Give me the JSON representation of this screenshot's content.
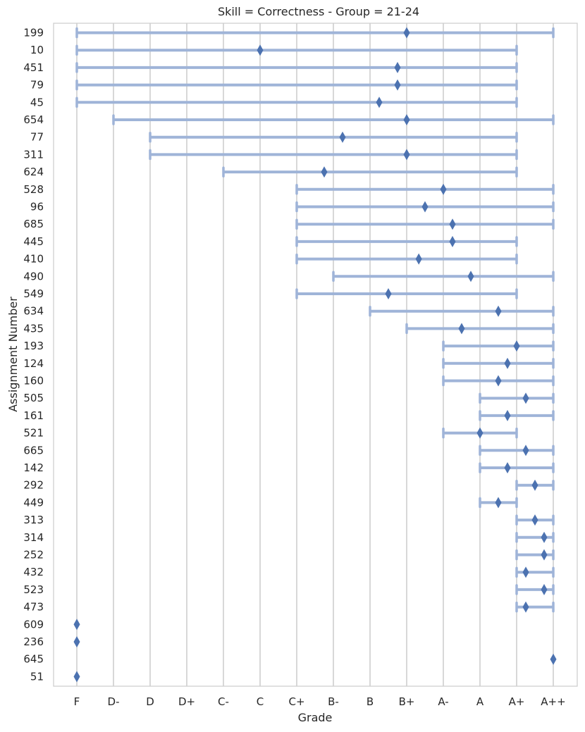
{
  "chart_data": {
    "type": "range-dot",
    "title": "Skill = Correctness - Group = 21-24",
    "xlabel": "Grade",
    "ylabel": "Assignment Number",
    "x_categories": [
      "F",
      "D-",
      "D",
      "D+",
      "C-",
      "C",
      "C+",
      "B-",
      "B",
      "B+",
      "A-",
      "A",
      "A+",
      "A++"
    ],
    "grid": "vertical",
    "colors": {
      "range": "#9fb4d8",
      "marker": "#4c72b0",
      "grid": "#cccccc",
      "frame": "#cccccc"
    },
    "rows": [
      {
        "label": "199",
        "min": 0,
        "max": 13,
        "mean": 9.0
      },
      {
        "label": "10",
        "min": 0,
        "max": 12,
        "mean": 5.0
      },
      {
        "label": "451",
        "min": 0,
        "max": 12,
        "mean": 8.75
      },
      {
        "label": "79",
        "min": 0,
        "max": 12,
        "mean": 8.75
      },
      {
        "label": "45",
        "min": 0,
        "max": 12,
        "mean": 8.25
      },
      {
        "label": "654",
        "min": 1,
        "max": 13,
        "mean": 9.0
      },
      {
        "label": "77",
        "min": 2,
        "max": 12,
        "mean": 7.25
      },
      {
        "label": "311",
        "min": 2,
        "max": 12,
        "mean": 9.0
      },
      {
        "label": "624",
        "min": 4,
        "max": 12,
        "mean": 6.75
      },
      {
        "label": "528",
        "min": 6,
        "max": 13,
        "mean": 10.0
      },
      {
        "label": "96",
        "min": 6,
        "max": 13,
        "mean": 9.5
      },
      {
        "label": "685",
        "min": 6,
        "max": 13,
        "mean": 10.25
      },
      {
        "label": "445",
        "min": 6,
        "max": 12,
        "mean": 10.25
      },
      {
        "label": "410",
        "min": 6,
        "max": 12,
        "mean": 9.33
      },
      {
        "label": "490",
        "min": 7,
        "max": 13,
        "mean": 10.75
      },
      {
        "label": "549",
        "min": 6,
        "max": 12,
        "mean": 8.5
      },
      {
        "label": "634",
        "min": 8,
        "max": 13,
        "mean": 11.5
      },
      {
        "label": "435",
        "min": 9,
        "max": 13,
        "mean": 10.5
      },
      {
        "label": "193",
        "min": 10,
        "max": 13,
        "mean": 12.0
      },
      {
        "label": "124",
        "min": 10,
        "max": 13,
        "mean": 11.75
      },
      {
        "label": "160",
        "min": 10,
        "max": 13,
        "mean": 11.5
      },
      {
        "label": "505",
        "min": 11,
        "max": 13,
        "mean": 12.25
      },
      {
        "label": "161",
        "min": 11,
        "max": 13,
        "mean": 11.75
      },
      {
        "label": "521",
        "min": 10,
        "max": 12,
        "mean": 11.0
      },
      {
        "label": "665",
        "min": 11,
        "max": 13,
        "mean": 12.25
      },
      {
        "label": "142",
        "min": 11,
        "max": 13,
        "mean": 11.75
      },
      {
        "label": "292",
        "min": 12,
        "max": 13,
        "mean": 12.5
      },
      {
        "label": "449",
        "min": 11,
        "max": 12,
        "mean": 11.5
      },
      {
        "label": "313",
        "min": 12,
        "max": 13,
        "mean": 12.5
      },
      {
        "label": "314",
        "min": 12,
        "max": 13,
        "mean": 12.75
      },
      {
        "label": "252",
        "min": 12,
        "max": 13,
        "mean": 12.75
      },
      {
        "label": "432",
        "min": 12,
        "max": 13,
        "mean": 12.25
      },
      {
        "label": "523",
        "min": 12,
        "max": 13,
        "mean": 12.75
      },
      {
        "label": "473",
        "min": 12,
        "max": 13,
        "mean": 12.25
      },
      {
        "label": "609",
        "min": 0,
        "max": 0,
        "mean": 0
      },
      {
        "label": "236",
        "min": 0,
        "max": 0,
        "mean": 0
      },
      {
        "label": "645",
        "min": 13,
        "max": 13,
        "mean": 13
      },
      {
        "label": "51",
        "min": 0,
        "max": 0,
        "mean": 0
      }
    ]
  }
}
